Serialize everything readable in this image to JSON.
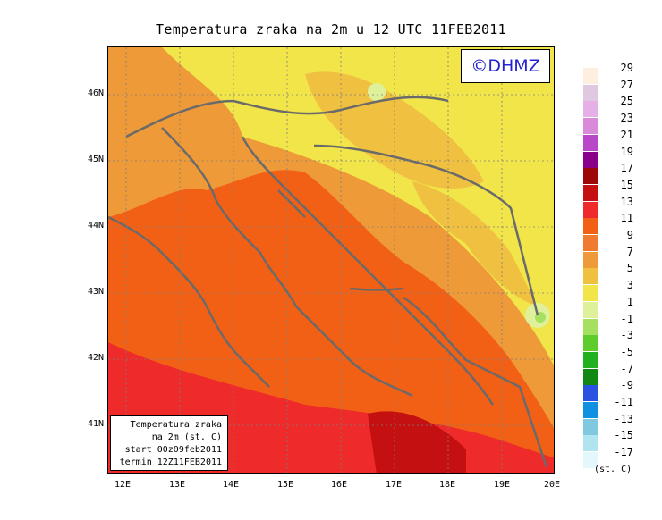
{
  "title": "Temperatura zraka na 2m u 12 UTC 11FEB2011",
  "logo_text": "©DHMZ",
  "info_box": {
    "line1": "Temperatura zraka",
    "line2": "na 2m (st. C)",
    "line3": "start 00z09feb2011",
    "line4": "termin 12Z11FEB2011"
  },
  "lat_labels": [
    "46N",
    "45N",
    "44N",
    "43N",
    "42N",
    "41N"
  ],
  "lon_labels": [
    "12E",
    "13E",
    "14E",
    "15E",
    "16E",
    "17E",
    "18E",
    "19E",
    "20E"
  ],
  "legend": {
    "units": "(st. C)",
    "labels": [
      "29",
      "27",
      "25",
      "23",
      "21",
      "19",
      "17",
      "15",
      "13",
      "11",
      "9",
      "7",
      "5",
      "3",
      "1",
      "-1",
      "-3",
      "-5",
      "-7",
      "-9",
      "-11",
      "-13",
      "-15",
      "-17"
    ],
    "colors": [
      "#fdeee0",
      "#e0c8e0",
      "#e4b0e6",
      "#d98ad9",
      "#b848c8",
      "#8a008a",
      "#9c0808",
      "#c41010",
      "#ee2a2a",
      "#f26015",
      "#f07a30",
      "#ee9a38",
      "#f0c040",
      "#f1e54a",
      "#dff09a",
      "#a6e060",
      "#5ecc2a",
      "#20b020",
      "#118811",
      "#2a52e0",
      "#1090e0",
      "#80c8e0",
      "#b0e4ef",
      "#e4f8fb"
    ]
  },
  "map_colors": {
    "sea_deep": "#f26015",
    "sea_warm": "#ee2a2a",
    "coast": "#ee9a38",
    "inland": "#f1e54a",
    "mountain": "#dff09a",
    "cold_spot": "#a6e060",
    "border": "#6a6a6a"
  }
}
